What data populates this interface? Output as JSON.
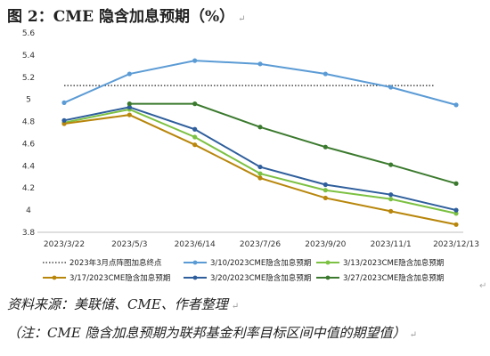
{
  "title": "图 2：CME 隐含加息预期（%）",
  "para_mark": "↵",
  "source_note": "资料来源：美联储、CME、作者整理",
  "footnote": "（注：CME 隐含加息预期为联邦基金利率目标区间中值的期望值）",
  "chart_data": {
    "type": "line",
    "x": [
      "2023/3/22",
      "2023/5/3",
      "2023/6/14",
      "2023/7/26",
      "2023/9/20",
      "2023/11/1",
      "2023/12/13"
    ],
    "ylim": [
      3.8,
      5.6
    ],
    "yticks": [
      "3.8",
      "4",
      "4.2",
      "4.4",
      "4.6",
      "4.8",
      "5",
      "5.2",
      "5.4",
      "5.6"
    ],
    "grid": false,
    "legend_position": "bottom",
    "reference_line": {
      "name": "2023年3月点阵图加息终点",
      "value": 5.125,
      "color": "#222222",
      "style": "dotted"
    },
    "series": [
      {
        "name": "3/10/2023CME隐含加息预期",
        "color": "#5b9bd5",
        "values": [
          4.97,
          5.23,
          5.35,
          5.32,
          5.23,
          5.11,
          4.95
        ]
      },
      {
        "name": "3/13/2023CME隐含加息预期",
        "color": "#7cc142",
        "values": [
          4.79,
          4.91,
          4.66,
          4.33,
          4.18,
          4.1,
          3.97
        ]
      },
      {
        "name": "3/17/2023CME隐含加息预期",
        "color": "#b8860b",
        "values": [
          4.78,
          4.86,
          4.59,
          4.29,
          4.11,
          3.99,
          3.87
        ]
      },
      {
        "name": "3/20/2023CME隐含加息预期",
        "color": "#2e5e9c",
        "values": [
          4.81,
          4.93,
          4.73,
          4.39,
          4.23,
          4.14,
          4.0
        ]
      },
      {
        "name": "3/27/2023CME隐含加息预期",
        "color": "#3b7a2e",
        "values": [
          null,
          4.96,
          4.96,
          4.75,
          4.57,
          4.41,
          4.24
        ]
      }
    ]
  }
}
